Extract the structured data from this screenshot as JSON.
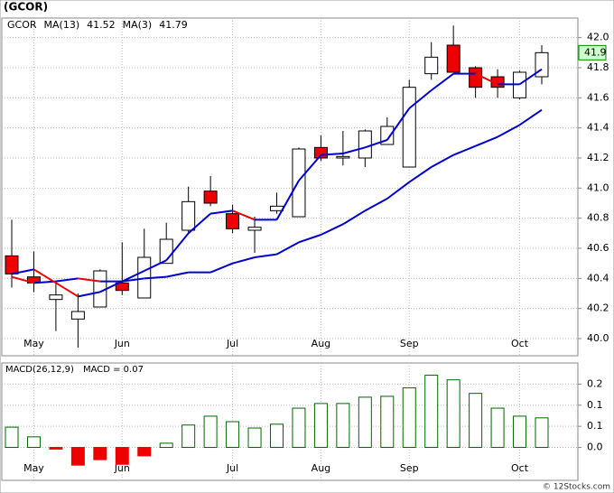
{
  "title": "(GCOR)",
  "footer": "© 12Stocks.com",
  "chart_data": [
    {
      "type": "candlestick",
      "categories": [
        null,
        "May",
        null,
        null,
        null,
        "Jun",
        null,
        null,
        null,
        null,
        "Jul",
        null,
        null,
        null,
        "Aug",
        null,
        null,
        null,
        "Sep",
        null,
        null,
        null,
        null,
        "Oct",
        null
      ],
      "series": [
        {
          "name": "GCOR",
          "color": "#000000",
          "up_color": "#ffffff",
          "down_color": "#ee0000",
          "open": [
            40.55,
            40.41,
            40.26,
            40.13,
            40.21,
            40.37,
            40.27,
            40.5,
            40.72,
            40.98,
            40.83,
            40.72,
            40.85,
            40.81,
            41.27,
            41.2,
            41.2,
            41.29,
            41.14,
            41.76,
            41.95,
            41.8,
            41.74,
            41.6,
            41.74
          ],
          "high": [
            40.79,
            40.58,
            40.37,
            40.3,
            40.46,
            40.64,
            40.73,
            40.77,
            41.01,
            41.08,
            40.89,
            40.81,
            40.97,
            41.27,
            41.35,
            41.38,
            41.39,
            41.47,
            41.72,
            41.97,
            42.08,
            41.81,
            41.79,
            41.78,
            41.95
          ],
          "low": [
            40.34,
            40.31,
            40.05,
            39.94,
            40.21,
            40.29,
            40.27,
            40.5,
            40.7,
            40.88,
            40.7,
            40.57,
            40.83,
            40.81,
            41.18,
            41.15,
            41.14,
            41.29,
            41.14,
            41.72,
            41.77,
            41.6,
            41.6,
            41.59,
            41.69
          ],
          "close": [
            40.43,
            40.37,
            40.29,
            40.18,
            40.45,
            40.32,
            40.54,
            40.66,
            40.91,
            40.9,
            40.73,
            40.74,
            40.88,
            41.26,
            41.2,
            41.21,
            41.38,
            41.41,
            41.67,
            41.87,
            41.77,
            41.67,
            41.67,
            41.77,
            41.9
          ]
        },
        {
          "name": "MA(13)",
          "color": "#0000cc",
          "down_color": "#ee0000",
          "values": [
            40.41,
            40.37,
            40.38,
            40.4,
            40.38,
            40.38,
            40.4,
            40.41,
            40.44,
            40.44,
            40.5,
            40.54,
            40.56,
            40.64,
            40.69,
            40.76,
            40.85,
            40.93,
            41.04,
            41.14,
            41.22,
            41.28,
            41.34,
            41.42,
            41.52
          ]
        },
        {
          "name": "MA(3)",
          "color": "#0000cc",
          "down_color": "#ee0000",
          "values": [
            40.43,
            40.46,
            40.37,
            40.28,
            40.31,
            40.38,
            40.45,
            40.52,
            40.7,
            40.83,
            40.85,
            40.79,
            40.79,
            41.05,
            41.22,
            41.23,
            41.27,
            41.32,
            41.53,
            41.65,
            41.76,
            41.76,
            41.69,
            41.69,
            41.79
          ]
        }
      ],
      "last_price": 41.9,
      "last_price_color": "#008800",
      "ylim": [
        39.886,
        42.13
      ],
      "yticks": [
        {
          "value": 40.0,
          "label": "40.0"
        },
        40.2,
        40.4,
        40.6,
        40.8,
        {
          "value": 41.0,
          "label": "41.0"
        },
        41.2,
        41.4,
        41.6,
        41.8,
        {
          "value": 42.0,
          "label": "42.0"
        }
      ],
      "grid": true
    },
    {
      "type": "bar",
      "series": [
        {
          "name": "MACD(26,12,9)",
          "color": "#006600",
          "down_color": "#ee0000",
          "values": [
            0.048,
            0.025,
            -0.004,
            -0.042,
            -0.029,
            -0.04,
            -0.02,
            0.01,
            0.053,
            0.074,
            0.061,
            0.046,
            0.055,
            0.093,
            0.104,
            0.104,
            0.119,
            0.121,
            0.141,
            0.171,
            0.16,
            0.128,
            0.093,
            0.074,
            0.07
          ]
        }
      ],
      "current_label": "MACD = 0.07",
      "ylim": [
        -0.078,
        0.2
      ],
      "yticks": [
        {
          "value": 0,
          "label": "0.0"
        },
        {
          "value": 0.05,
          "label": "0.1"
        },
        0.1,
        {
          "value": 0.15,
          "label": "0.2"
        }
      ],
      "grid": true
    }
  ]
}
